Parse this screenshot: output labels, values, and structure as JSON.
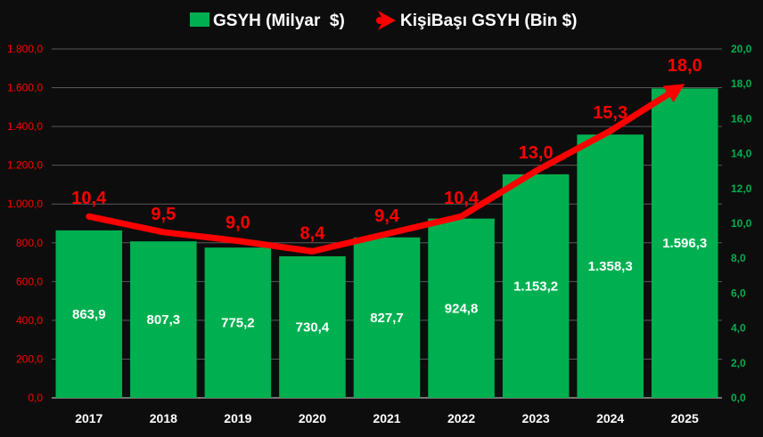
{
  "chart_data": {
    "type": "bar+line",
    "categories": [
      "2017",
      "2018",
      "2019",
      "2020",
      "2021",
      "2022",
      "2023",
      "2024",
      "2025"
    ],
    "series": [
      {
        "name": "GSYH (Milyar  $)",
        "type": "bar",
        "axis": "left",
        "values": [
          863.9,
          807.3,
          775.2,
          730.4,
          827.7,
          924.8,
          1153.2,
          1358.3,
          1596.3
        ],
        "labels": [
          "863,9",
          "807,3",
          "775,2",
          "730,4",
          "827,7",
          "924,8",
          "1.153,2",
          "1.358,3",
          "1.596,3"
        ],
        "color": "#00b050"
      },
      {
        "name": "KişiBaşı GSYH (Bin $)",
        "type": "line",
        "axis": "right",
        "values": [
          10.4,
          9.5,
          9.0,
          8.4,
          9.4,
          10.4,
          13.0,
          15.3,
          18.0
        ],
        "labels": [
          "10,4",
          "9,5",
          "9,0",
          "8,4",
          "9,4",
          "10,4",
          "13,0",
          "15,3",
          "18,0"
        ],
        "color": "#ff0000"
      }
    ],
    "left_axis": {
      "range": [
        0,
        1800
      ],
      "ticks": [
        "0,0",
        "200,0",
        "400,0",
        "600,0",
        "800,0",
        "1.000,0",
        "1.200,0",
        "1.400,0",
        "1.600,0",
        "1.800,0"
      ],
      "color": "#ff0000"
    },
    "right_axis": {
      "range": [
        0,
        20
      ],
      "ticks": [
        "0,0",
        "2,0",
        "4,0",
        "6,0",
        "8,0",
        "10,0",
        "12,0",
        "14,0",
        "16,0",
        "18,0",
        "20,0"
      ],
      "color": "#00b050"
    },
    "legend": "top-center",
    "grid": true
  }
}
